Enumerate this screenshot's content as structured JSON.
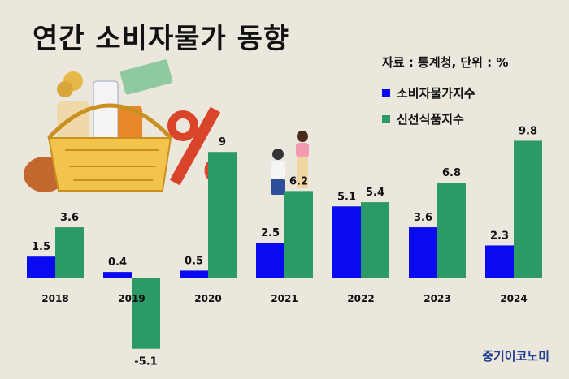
{
  "title": "연간 소비자물가 동향",
  "source": "자료 : 통계청, 단위 : %",
  "brand": "중기이코노미",
  "colors": {
    "series0": "#0a0af0",
    "series1": "#2c9a66"
  },
  "chart_data": {
    "type": "bar",
    "categories": [
      "2018",
      "2019",
      "2020",
      "2021",
      "2022",
      "2023",
      "2024"
    ],
    "series": [
      {
        "name": "소비자물가지수",
        "values": [
          1.5,
          0.4,
          0.5,
          2.5,
          5.1,
          3.6,
          2.3
        ]
      },
      {
        "name": "신선식품지수",
        "values": [
          3.6,
          -5.1,
          9,
          6.2,
          5.4,
          6.8,
          9.8
        ]
      }
    ],
    "value_labels": [
      [
        "1.5",
        "0.4",
        "0.5",
        "2.5",
        "5.1",
        "3.6",
        "2.3"
      ],
      [
        "3.6",
        "-5.1",
        "9",
        "6.2",
        "5.4",
        "6.8",
        "9.8"
      ]
    ],
    "legend_position": "top-right",
    "grid": false
  }
}
